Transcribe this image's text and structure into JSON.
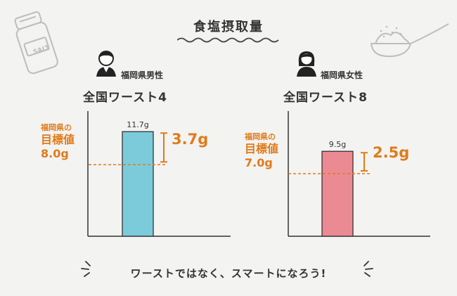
{
  "title": "食塩摂取量",
  "footer": "ワーストではなく、スマートになろう!",
  "salt_shaker_text": "SALT",
  "colors": {
    "accent": "#e07b1a",
    "male_bar": "#7ccbdb",
    "female_bar": "#ec8a94",
    "axis": "#333333",
    "background": "#f3f3f2"
  },
  "chart_data": [
    {
      "type": "bar",
      "person": "福岡県男性",
      "rank": "全国ワースト4",
      "categories": [
        "福岡県男性"
      ],
      "values": [
        11.7
      ],
      "value_label": "11.7g",
      "target": 8.0,
      "target_label_line1": "福岡県の",
      "target_label_line2": "目標値",
      "target_value_label": "8.0g",
      "difference_label": "3.7g",
      "ylim": [
        0,
        14
      ]
    },
    {
      "type": "bar",
      "person": "福岡県女性",
      "rank": "全国ワースト8",
      "categories": [
        "福岡県女性"
      ],
      "values": [
        9.5
      ],
      "value_label": "9.5g",
      "target": 7.0,
      "target_label_line1": "福岡県の",
      "target_label_line2": "目標値",
      "target_value_label": "7.0g",
      "difference_label": "2.5g",
      "ylim": [
        0,
        14
      ]
    }
  ]
}
